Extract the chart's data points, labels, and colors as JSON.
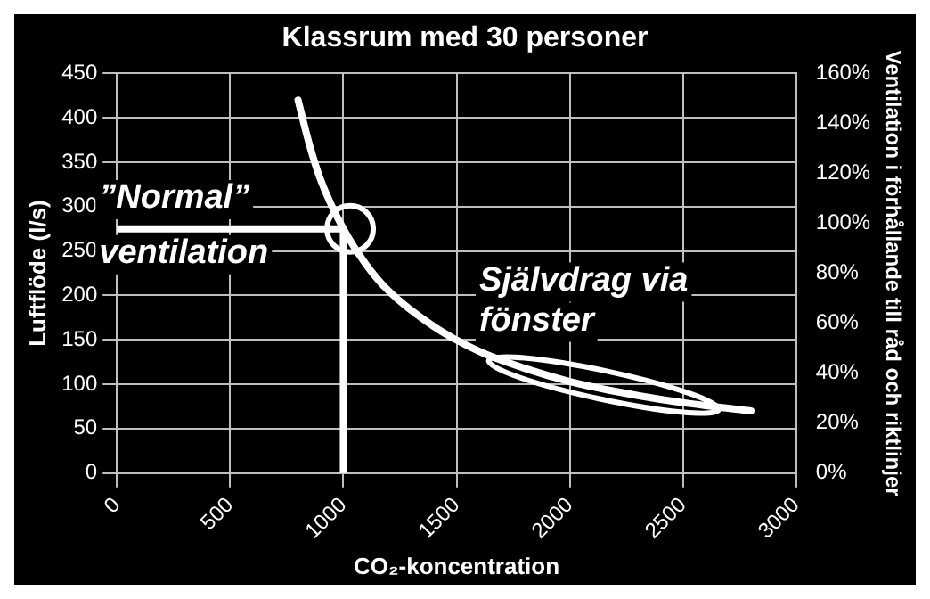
{
  "chart_data": {
    "type": "line",
    "title": "Klassrum med 30 personer",
    "xlabel": "CO₂-koncentration",
    "ylabel": "Luftflöde (l/s)",
    "y2label": "Ventilation i förhållande till råd och riktlinjer",
    "series": [
      {
        "color": "#ffffff",
        "x": [
          800,
          850,
          900,
          1000,
          1100,
          1200,
          1400,
          1600,
          1800,
          2000,
          2200,
          2400,
          2600,
          2800
        ],
        "values": [
          420,
          370,
          330,
          275,
          235,
          205,
          165,
          137,
          118,
          103,
          92,
          83,
          76,
          70
        ]
      },
      {
        "color": "#ffffff",
        "x": [
          0,
          1000
        ],
        "values": [
          275,
          275
        ]
      },
      {
        "color": "#ffffff",
        "x": [
          1000,
          1000
        ],
        "values": [
          0,
          275
        ]
      }
    ],
    "xlim": [
      0,
      3000
    ],
    "xticks": [
      0,
      500,
      1000,
      1500,
      2000,
      2500,
      3000
    ],
    "ylim": [
      0,
      450
    ],
    "yticks": [
      0,
      50,
      100,
      150,
      200,
      250,
      300,
      350,
      400,
      450
    ],
    "y2lim": [
      0,
      160
    ],
    "y2ticks": [
      {
        "value": 0,
        "label": "0%"
      },
      {
        "value": 20,
        "label": "20%"
      },
      {
        "value": 40,
        "label": "40%"
      },
      {
        "value": 60,
        "label": "60%"
      },
      {
        "value": 80,
        "label": "80%"
      },
      {
        "value": 100,
        "label": "100%"
      },
      {
        "value": 120,
        "label": "120%"
      },
      {
        "value": 140,
        "label": "140%"
      },
      {
        "value": 160,
        "label": "160%"
      }
    ],
    "annotations": [
      "”Normal”\nventilation",
      "Självdrag via\nfönster"
    ],
    "grid": true,
    "marker": "none",
    "line_style": "solid",
    "legend": false
  }
}
